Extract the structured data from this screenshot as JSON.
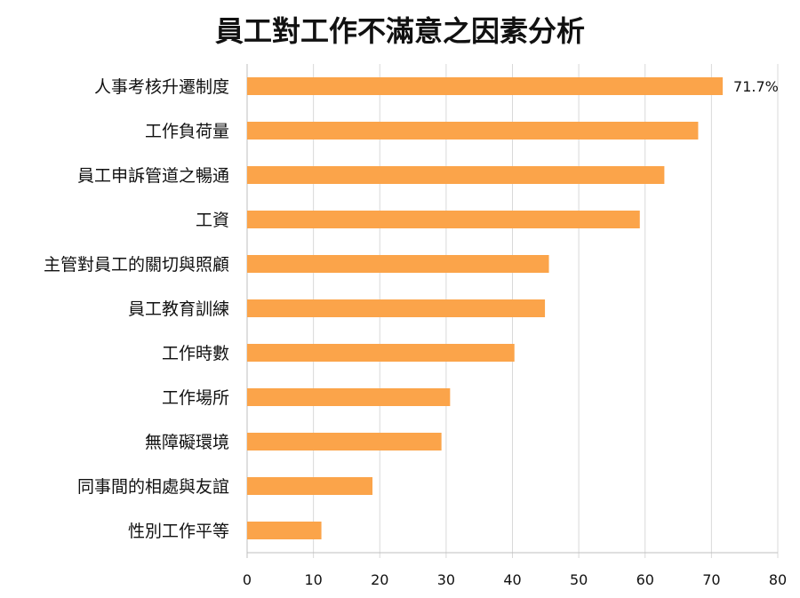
{
  "chart_data": {
    "type": "bar",
    "orientation": "horizontal",
    "title": "員工對工作不滿意之因素分析",
    "xlabel": "",
    "ylabel": "",
    "categories": [
      "人事考核升遷制度",
      "工作負荷量",
      "員工申訴管道之暢通",
      "工資",
      "主管對員工的關切與照顧",
      "員工教育訓練",
      "工作時數",
      "工作場所",
      "無障礙環境",
      "同事間的相處與友誼",
      "性別工作平等"
    ],
    "values": [
      71.7,
      68,
      62.9,
      59.2,
      45.5,
      44.9,
      40.3,
      30.6,
      29.3,
      18.9,
      11.2
    ],
    "data_labels": [
      "71.7%",
      "",
      "",
      "",
      "",
      "",
      "",
      "",
      "",
      "",
      ""
    ],
    "xlim": [
      0,
      80
    ],
    "xticks": [
      "0",
      "10",
      "20",
      "30",
      "40",
      "50",
      "60",
      "70",
      "80"
    ],
    "grid": true,
    "legend": "none",
    "bar_color": "#FBA44A",
    "grid_color": "#D9D9D9"
  }
}
